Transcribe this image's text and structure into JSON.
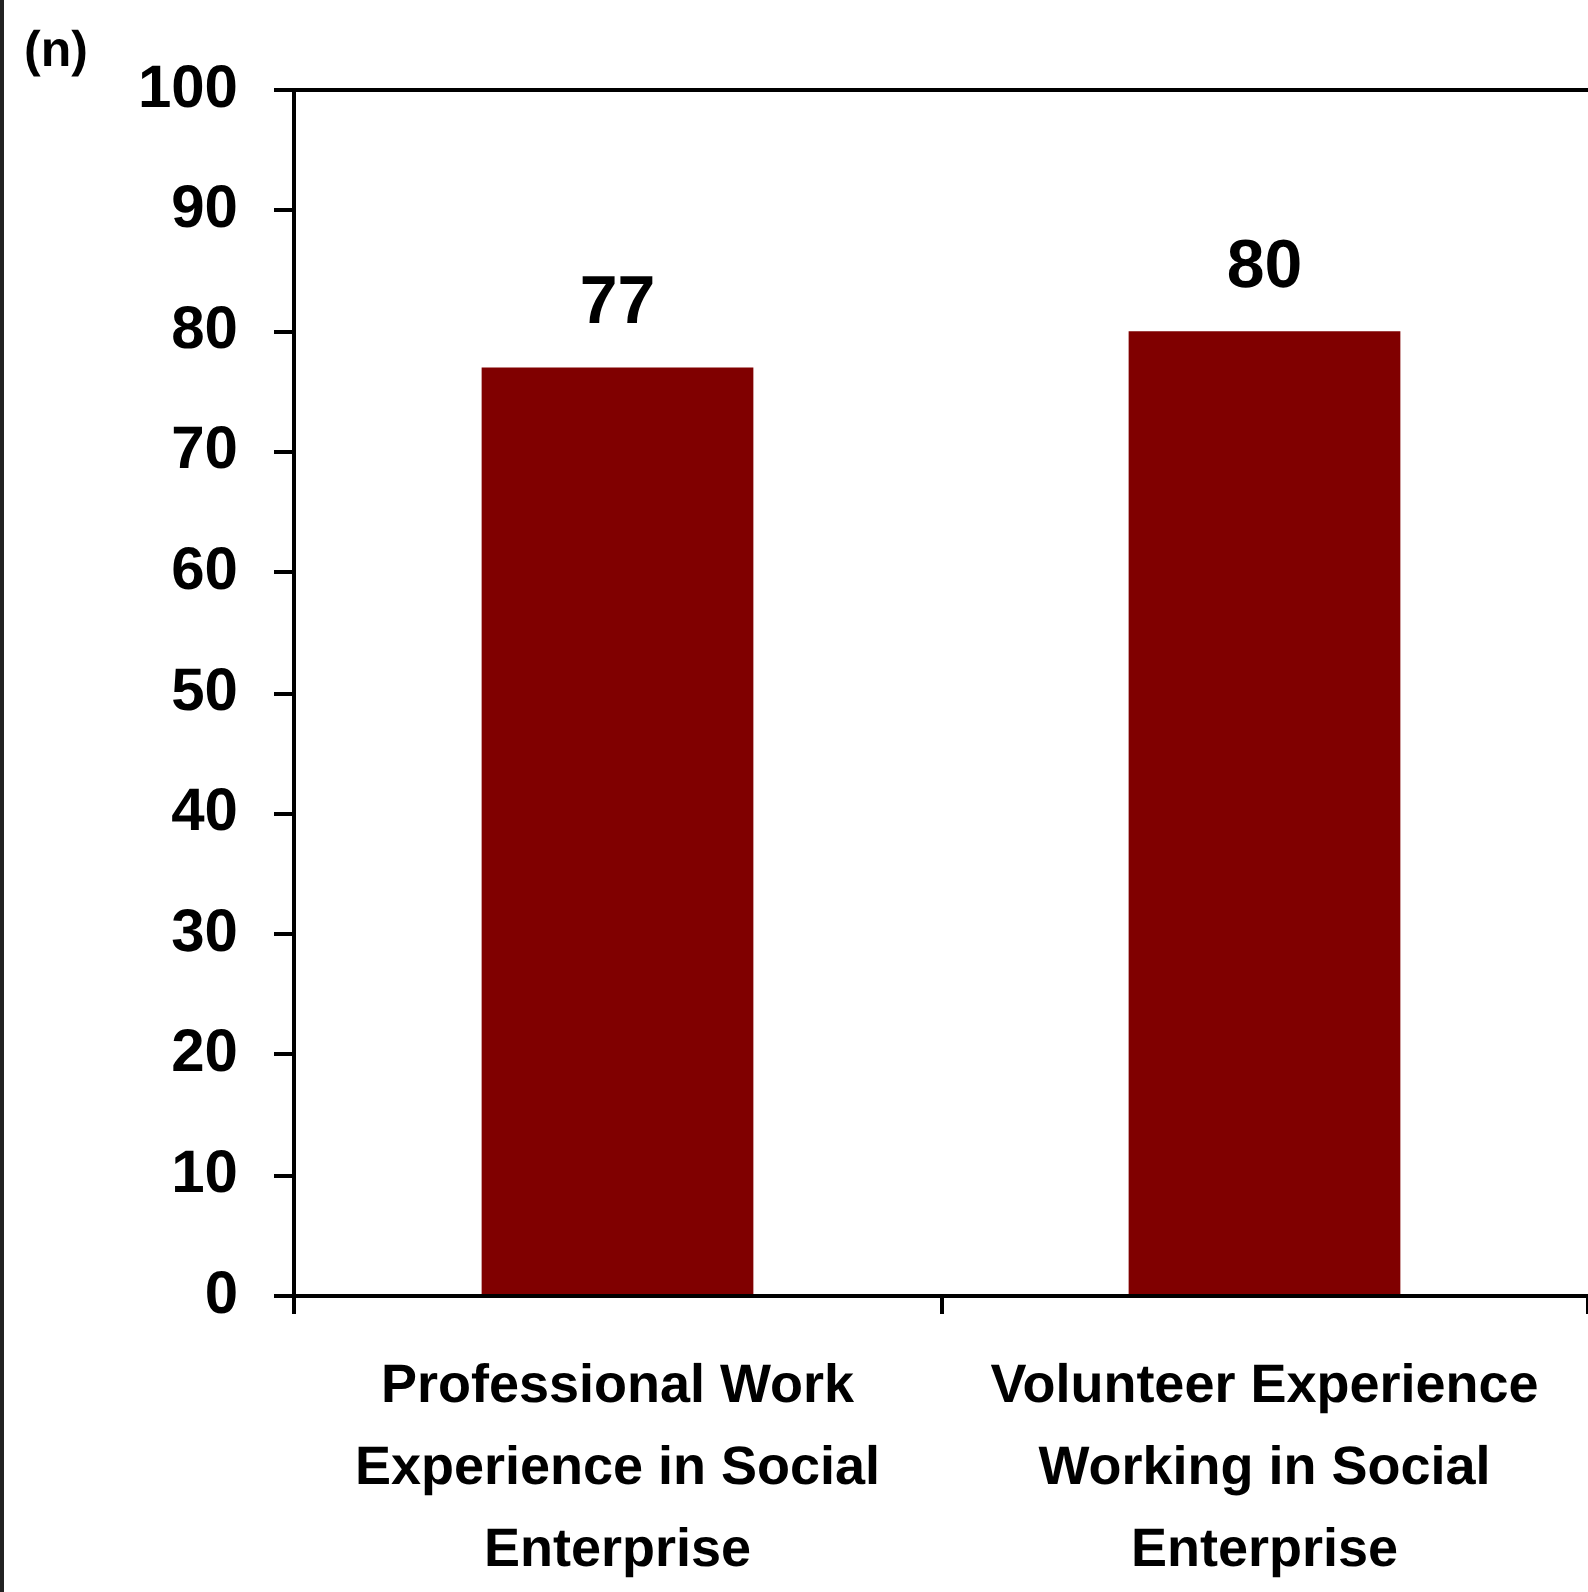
{
  "chart_data": {
    "type": "bar",
    "ylabel": "(n)",
    "categories": [
      "Professional Work Experience in Social Enterprise",
      "Volunteer Experience Working in Social Enterprise"
    ],
    "values": [
      77,
      80
    ],
    "color": "#800000",
    "ylim": [
      0,
      100
    ],
    "yticks": [
      0,
      10,
      20,
      30,
      40,
      50,
      60,
      70,
      80,
      90,
      100
    ],
    "data_labels": true
  }
}
